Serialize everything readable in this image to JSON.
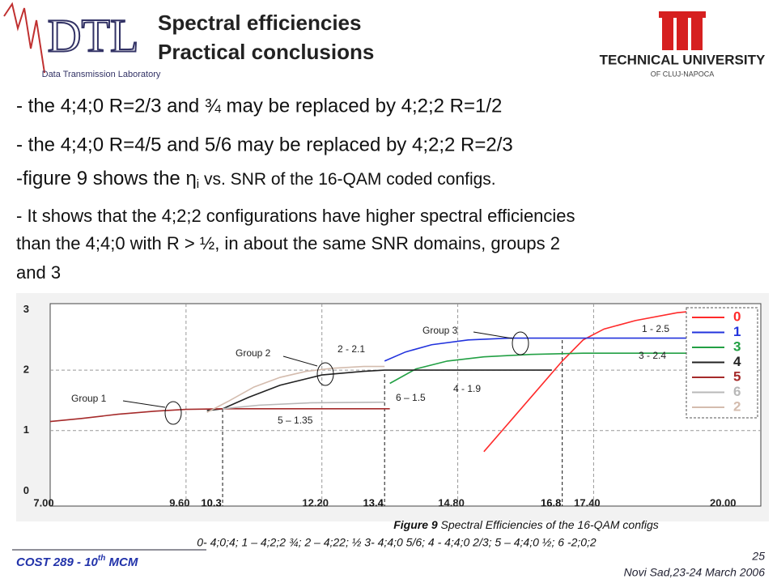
{
  "header": {
    "title": [
      "Spectral efficiencies",
      "Practical conclusions"
    ],
    "left_logo": {
      "text": "DTL",
      "subtitle": "Data Transmission Laboratory"
    },
    "right_logo": {
      "text": "TECHNICAL UNIVERSITY",
      "subtitle": "OF CLUJ-NAPOCA"
    }
  },
  "bullets": [
    [
      "- the 4;4;0 R=2/3 and ¾ may be replaced by 4;2;2 R=1/2"
    ],
    [
      "- the 4;4;0 R=4/5 and 5/6 may be replaced by 4;2;2 R=2/3"
    ],
    [
      "-figure 9 shows the η",
      "i",
      " vs. SNR of the 16-QAM coded configs."
    ],
    [
      "- It shows that the 4;2;2 configurations have higher spectral efficiencies",
      "than the 4;4;0 with R > ½, in about the same SNR domains, groups 2",
      "and 3"
    ]
  ],
  "chart_data": {
    "type": "line",
    "xlim": [
      7,
      20.6
    ],
    "ylim": [
      -0.25,
      3.1
    ],
    "xticks": [
      {
        "value": 7,
        "label": "7.00"
      },
      {
        "value": 9.6,
        "label": "9.60"
      },
      {
        "value": 12.2,
        "label": "12.20"
      },
      {
        "value": 14.8,
        "label": "14.80"
      },
      {
        "value": 17.4,
        "label": "17.40"
      },
      {
        "value": 20,
        "label": "20.00"
      }
    ],
    "yticks": [
      0,
      1,
      2,
      3
    ],
    "grid": true,
    "markers": [
      10.3,
      13.4,
      16.8
    ],
    "series": [
      {
        "name": "0",
        "color": "#ff2a2a",
        "x": [
          15.3,
          15.7,
          16.2,
          16.8,
          17.2,
          17.6,
          18.2,
          19,
          19.6
        ],
        "values": [
          0.65,
          1.05,
          1.55,
          2.15,
          2.5,
          2.68,
          2.82,
          2.95,
          3.0
        ]
      },
      {
        "name": "1",
        "color": "#2233dd",
        "x": [
          13.4,
          13.8,
          14.3,
          15,
          15.8,
          16.8,
          18,
          19.3
        ],
        "values": [
          2.15,
          2.3,
          2.42,
          2.5,
          2.53,
          2.53,
          2.53,
          2.53
        ]
      },
      {
        "name": "3",
        "color": "#22a044",
        "x": [
          13.5,
          14,
          14.6,
          15.3,
          16.2,
          17.2,
          18.5,
          19.3
        ],
        "values": [
          1.78,
          2.02,
          2.15,
          2.22,
          2.26,
          2.28,
          2.28,
          2.28
        ]
      },
      {
        "name": "4",
        "color": "#222222",
        "x": [
          10,
          10.3,
          10.8,
          11.4,
          12.2,
          13,
          13.4,
          14.8,
          16.6
        ],
        "values": [
          1.33,
          1.36,
          1.55,
          1.75,
          1.92,
          1.98,
          2.0,
          2.0,
          2.0
        ]
      },
      {
        "name": "5",
        "color": "#a52a2a",
        "x": [
          7,
          7.6,
          8.3,
          9,
          9.6,
          10.3,
          11.5,
          13.5
        ],
        "values": [
          1.15,
          1.2,
          1.27,
          1.32,
          1.35,
          1.36,
          1.36,
          1.36
        ]
      },
      {
        "name": "6",
        "color": "#b8b8b8",
        "x": [
          10.3,
          11,
          12,
          13.4
        ],
        "values": [
          1.36,
          1.42,
          1.46,
          1.47
        ]
      },
      {
        "name": "2",
        "color": "#d4bcae",
        "x": [
          10,
          10.4,
          10.9,
          11.4,
          11.9,
          12.4,
          13,
          13.4
        ],
        "values": [
          1.3,
          1.48,
          1.72,
          1.88,
          1.98,
          2.03,
          2.06,
          2.06
        ]
      }
    ],
    "annotations": [
      "Group 1",
      "Group 2",
      "Group 3",
      "5 – 1.35",
      "6 – 1.5",
      "2 - 2.1",
      "4 - 1.9",
      "1 - 2.5",
      "3 - 2.4"
    ]
  },
  "caption": {
    "figure": "Figure 9",
    "text": " Spectral Efficiencies of the 16-QAM configs",
    "legend": "0- 4;0;4; 1 – 4;2;2 ¾; 2 – 4;22; ½ 3- 4;4;0 5/6;  4 - 4;4;0 2/3;  5 – 4;4;0 ½;  6 -2;0;2"
  },
  "footer": {
    "left": "COST 289 - 10",
    "left_sup": "th",
    "left_end": " MCM",
    "page": "25",
    "date": "Novi Sad,23-24 March 2006"
  }
}
